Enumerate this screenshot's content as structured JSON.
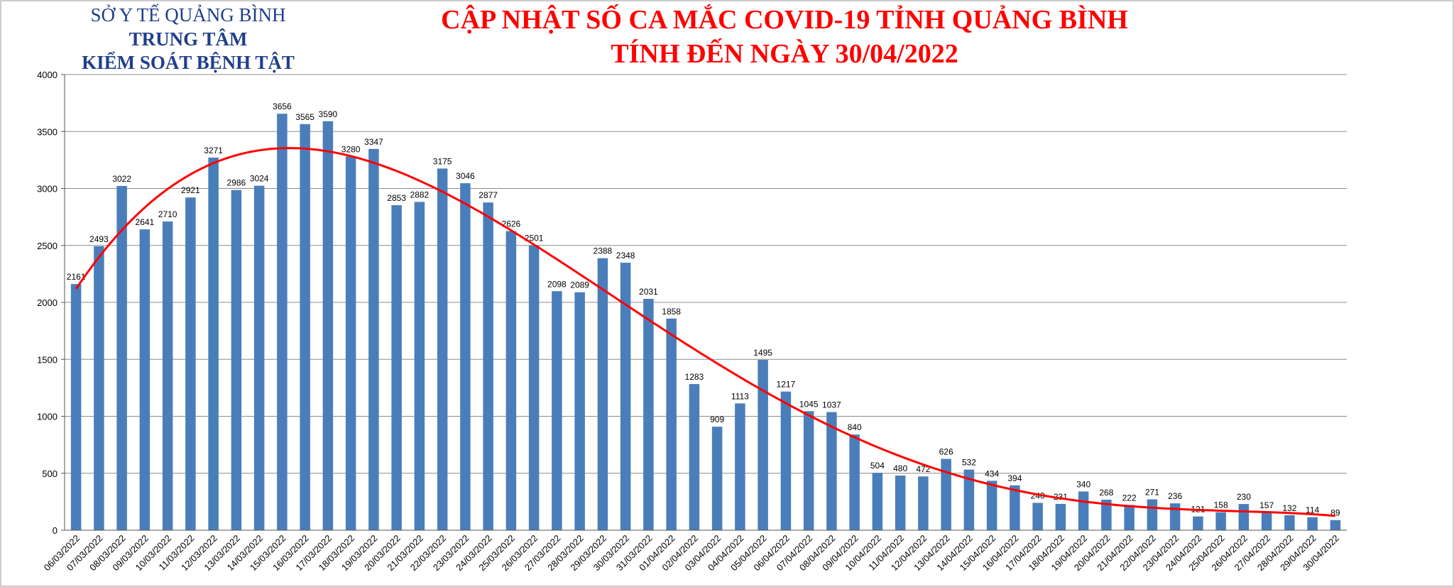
{
  "header": {
    "org_line1": "SỞ Y TẾ QUẢNG BÌNH",
    "org_line2": "TRUNG TÂM",
    "org_line3": "KIỂM SOÁT BỆNH TẬT",
    "title_line1": "CẬP NHẬT SỐ CA MẮC COVID-19 TỈNH QUẢNG BÌNH",
    "title_line2": "TÍNH ĐẾN NGÀY 30/04/2022"
  },
  "colors": {
    "bar": "#4a7ebb",
    "trend": "#ff0000",
    "grid": "#8c8c8c",
    "org_text": "#1f3f8a",
    "title_text": "#ff0000"
  },
  "chart_data": {
    "type": "bar",
    "title": "CẬP NHẬT SỐ CA MẮC COVID-19 TỈNH QUẢNG BÌNH",
    "subtitle": "TÍNH ĐẾN NGÀY 30/04/2022",
    "xlabel": "",
    "ylabel": "",
    "ylim": [
      0,
      4000
    ],
    "yticks": [
      0,
      500,
      1000,
      1500,
      2000,
      2500,
      3000,
      3500,
      4000
    ],
    "grid": true,
    "legend": "none",
    "data_labels": true,
    "trendline": "polynomial",
    "categories": [
      "06/03/2022",
      "07/03/2022",
      "08/03/2022",
      "09/03/2022",
      "10/03/2022",
      "11/03/2022",
      "12/03/2022",
      "13/03/2022",
      "14/03/2022",
      "15/03/2022",
      "16/03/2022",
      "17/03/2022",
      "18/03/2022",
      "19/03/2022",
      "20/03/2022",
      "21/03/2022",
      "22/03/2022",
      "23/03/2022",
      "24/03/2022",
      "25/03/2022",
      "26/03/2022",
      "27/03/2022",
      "28/03/2022",
      "29/03/2022",
      "30/03/2022",
      "31/03/2022",
      "01/04/2022",
      "02/04/2022",
      "03/04/2022",
      "04/04/2022",
      "05/04/2022",
      "06/04/2022",
      "07/04/2022",
      "08/04/2022",
      "09/04/2022",
      "10/04/2022",
      "11/04/2022",
      "12/04/2022",
      "13/04/2022",
      "14/04/2022",
      "15/04/2022",
      "16/04/2022",
      "17/04/2022",
      "18/04/2022",
      "19/04/2022",
      "20/04/2022",
      "21/04/2022",
      "22/04/2022",
      "23/04/2022",
      "24/04/2022",
      "25/04/2022",
      "26/04/2022",
      "27/04/2022",
      "28/04/2022",
      "29/04/2022",
      "30/04/2022"
    ],
    "values": [
      2161,
      2493,
      3022,
      2641,
      2710,
      2921,
      3271,
      2986,
      3024,
      3656,
      3565,
      3590,
      3280,
      3347,
      2853,
      2882,
      3175,
      3046,
      2877,
      2626,
      2501,
      2098,
      2089,
      2388,
      2348,
      2031,
      1858,
      1283,
      909,
      1113,
      1495,
      1217,
      1045,
      1037,
      840,
      504,
      480,
      472,
      626,
      532,
      434,
      394,
      240,
      231,
      340,
      268,
      222,
      271,
      236,
      121,
      158,
      230,
      157,
      132,
      114,
      89
    ]
  }
}
